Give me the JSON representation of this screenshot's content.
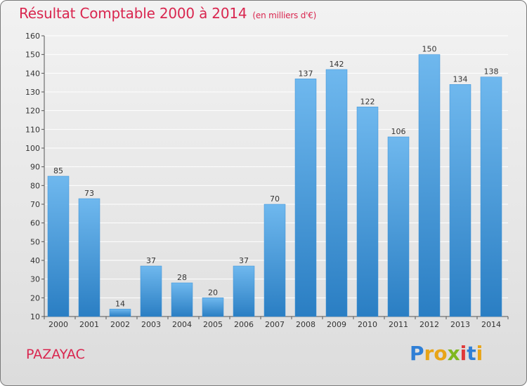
{
  "header": {
    "title": "Résultat Comptable 2000 à 2014",
    "unit": "(en milliers d'€)"
  },
  "commune": "PAZAYAC",
  "logo": {
    "text": "Proxiti",
    "letters": [
      "P",
      "r",
      "o",
      "x",
      "i",
      "t",
      "i"
    ],
    "colors": [
      "#2f7fd6",
      "#e8a417",
      "#e8a417",
      "#7fb81f",
      "#e03a3a",
      "#2f7fd6",
      "#e8a417"
    ]
  },
  "colors": {
    "bar_light": "#6fb8ee",
    "bar_dark": "#2a7ec3",
    "title": "#d9264f",
    "grid": "#ffffff"
  },
  "chart_data": {
    "type": "bar",
    "title": "Résultat Comptable 2000 à 2014",
    "ylabel": "(en milliers d'€)",
    "xlabel": "",
    "categories": [
      "2000",
      "2001",
      "2002",
      "2003",
      "2004",
      "2005",
      "2006",
      "2007",
      "2008",
      "2009",
      "2010",
      "2011",
      "2012",
      "2013",
      "2014"
    ],
    "values": [
      85,
      73,
      14,
      37,
      28,
      20,
      37,
      70,
      137,
      142,
      122,
      106,
      150,
      134,
      138
    ],
    "ylim": [
      10,
      160
    ],
    "yticks": [
      10,
      20,
      30,
      40,
      50,
      60,
      70,
      80,
      90,
      100,
      110,
      120,
      130,
      140,
      150,
      160
    ],
    "grid": true
  }
}
